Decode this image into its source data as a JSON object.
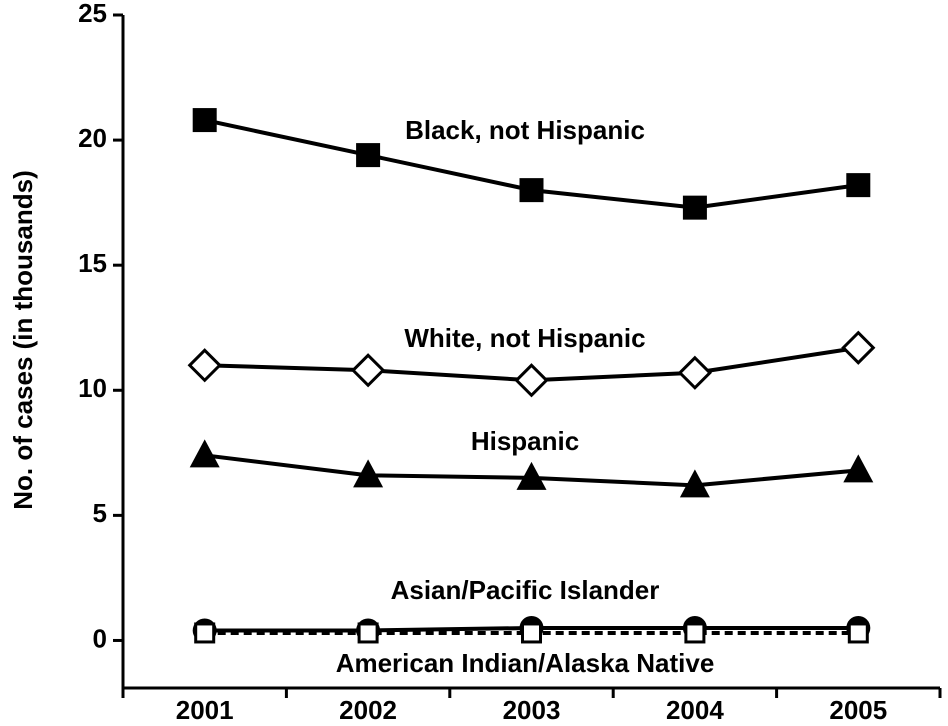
{
  "chart_data": {
    "type": "line",
    "y_label": "No. of cases (in thousands)",
    "categories": [
      "2001",
      "2002",
      "2003",
      "2004",
      "2005"
    ],
    "series": [
      {
        "name": "Black, not Hispanic",
        "color": "#000000",
        "marker": "square",
        "dash": false,
        "values": [
          20.8,
          19.4,
          18.0,
          17.3,
          18.2
        ]
      },
      {
        "name": "White, not Hispanic",
        "color": "#000000",
        "marker": "open-diamond",
        "dash": false,
        "values": [
          11.0,
          10.8,
          10.4,
          10.7,
          11.7
        ]
      },
      {
        "name": "Hispanic",
        "color": "#000000",
        "marker": "triangle",
        "dash": false,
        "values": [
          7.4,
          6.6,
          6.5,
          6.2,
          6.8
        ]
      },
      {
        "name": "Asian/Pacific Islander",
        "color": "#000000",
        "marker": "circle",
        "dash": false,
        "values": [
          0.4,
          0.4,
          0.5,
          0.5,
          0.5
        ]
      },
      {
        "name": "American Indian/Alaska Native",
        "color": "#000000",
        "marker": "open-square",
        "dash": true,
        "values": [
          0.3,
          0.3,
          0.3,
          0.3,
          0.3
        ]
      }
    ],
    "ylim": [
      -1.9,
      25
    ],
    "yticks": [
      0,
      5,
      10,
      15,
      20,
      25
    ]
  }
}
